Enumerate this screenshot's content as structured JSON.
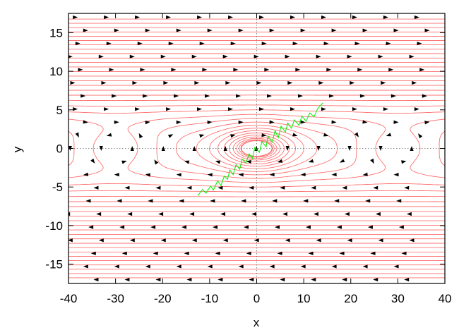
{
  "chart_data": {
    "type": "line",
    "title": "",
    "xlabel": "x",
    "ylabel": "y",
    "xlim": [
      -40,
      40
    ],
    "ylim": [
      -17.5,
      17.5
    ],
    "xticks": [
      -40,
      -30,
      -20,
      -10,
      0,
      10,
      20,
      30,
      40
    ],
    "yticks": [
      -15,
      -10,
      -5,
      0,
      5,
      10,
      15
    ],
    "grid": false,
    "zero_axes_dotted": true,
    "colors": {
      "streamlines": "#ff6f6f",
      "arrows": "#000000",
      "trajectory": "#00ee00",
      "frame": "#000000"
    },
    "series": [
      {
        "kind": "trajectory",
        "points": [
          [
            -12.5,
            -6.1
          ],
          [
            -11.5,
            -5.3
          ],
          [
            -10.8,
            -5.8
          ],
          [
            -9.8,
            -4.9
          ],
          [
            -9.2,
            -5.4
          ],
          [
            -8.3,
            -4.2
          ],
          [
            -7.6,
            -4.8
          ],
          [
            -6.9,
            -3.6
          ],
          [
            -6.2,
            -4.0
          ],
          [
            -5.7,
            -2.8
          ],
          [
            -5.0,
            -3.4
          ],
          [
            -4.4,
            -2.1
          ],
          [
            -3.6,
            -2.7
          ],
          [
            -3.1,
            -1.4
          ],
          [
            -2.3,
            -1.9
          ],
          [
            -1.6,
            -0.7
          ],
          [
            -0.9,
            -1.3
          ],
          [
            -0.4,
            0.1
          ],
          [
            0.6,
            -0.5
          ],
          [
            1.1,
            0.9
          ],
          [
            2.0,
            0.2
          ],
          [
            2.4,
            1.6
          ],
          [
            3.3,
            0.8
          ],
          [
            3.9,
            2.3
          ],
          [
            4.6,
            1.4
          ],
          [
            5.2,
            2.9
          ],
          [
            6.1,
            2.1
          ],
          [
            6.6,
            3.3
          ],
          [
            7.4,
            2.6
          ],
          [
            8.0,
            3.7
          ],
          [
            9.0,
            3.0
          ],
          [
            9.6,
            4.2
          ],
          [
            10.5,
            3.5
          ],
          [
            11.3,
            4.6
          ],
          [
            12.2,
            4.1
          ],
          [
            13.0,
            5.2
          ],
          [
            14.1,
            5.9
          ]
        ]
      }
    ]
  }
}
